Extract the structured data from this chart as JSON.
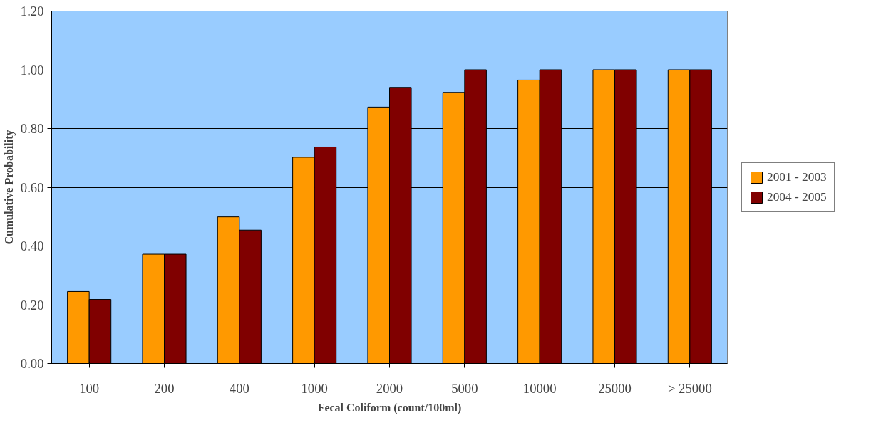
{
  "chart_data": {
    "type": "bar",
    "xlabel": "Fecal Coliform (count/100ml)",
    "ylabel": "Cumulative Probability",
    "categories": [
      "100",
      "200",
      "400",
      "1000",
      "2000",
      "5000",
      "10000",
      "25000",
      "> 25000"
    ],
    "series": [
      {
        "name": "2001 - 2003",
        "color": "#ff9900",
        "values": [
          0.245,
          0.372,
          0.499,
          0.702,
          0.873,
          0.923,
          0.965,
          1.0,
          1.0
        ]
      },
      {
        "name": "2004 - 2005",
        "color": "#800000",
        "values": [
          0.218,
          0.372,
          0.454,
          0.737,
          0.94,
          1.0,
          1.0,
          1.0,
          1.0
        ]
      }
    ],
    "ylim": [
      0,
      1.2
    ],
    "yticks": [
      {
        "value": 0,
        "label": "0.00"
      },
      {
        "value": 0.2,
        "label": "0.20"
      },
      {
        "value": 0.4,
        "label": "0.40"
      },
      {
        "value": 0.6,
        "label": "0.60"
      },
      {
        "value": 0.8,
        "label": "0.80"
      },
      {
        "value": 1.0,
        "label": "1.00"
      },
      {
        "value": 1.2,
        "label": "1.20"
      }
    ],
    "grid": "y",
    "legend": "right"
  }
}
